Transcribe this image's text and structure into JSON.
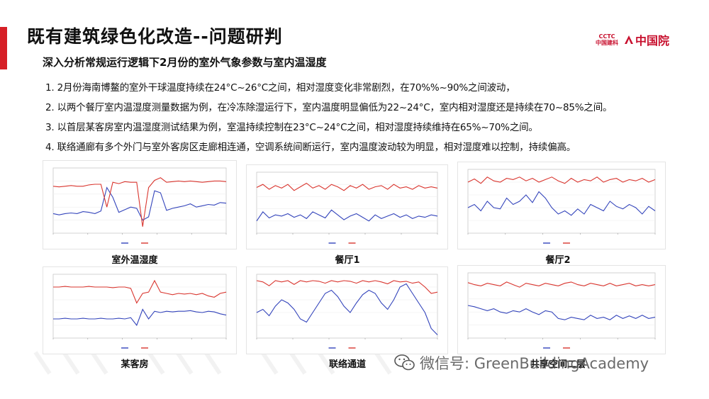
{
  "title": "既有建筑绿色化改造--问题研判",
  "subtitle": "深入分析常规运行逻辑下2月份的室外气象参数与室内温湿度",
  "logo": {
    "cctc_top": "CCTC",
    "cctc_bottom": "中国建科",
    "name": "中国院"
  },
  "points": [
    "1. 2月份海南博鳌的室外干球温度持续在24°C~26°C之间，相对湿度变化非常剧烈，在70%%~90%之间波动，",
    "2. 以两个餐厅室内温湿度测量数据为例，在冷冻除湿运行下，室内温度明显偏低为22~24°C，室内相对湿度还是持续在70~85%之间。",
    "3. 以首层某客房室内温湿度测试结果为例，室温持续控制在23°C~24°C之间，相对湿度持续维持在65%~70%之间。",
    "4. 联络通廊有多个外门与室外客房区走廊相连通，空调系统间断运行，室内温度波动较为明显，相对湿度难以控制，持续偏高。"
  ],
  "captions": [
    "室外温湿度",
    "餐厅1",
    "餐厅2",
    "某客房",
    "联络通道",
    "共享空间二层"
  ],
  "watermark": "微信号: GreenBuildingAcademy",
  "colors": {
    "accent": "#d61f26",
    "humidity_line": "#d9352e",
    "temperature_line": "#3344bb"
  },
  "chart_data": [
    {
      "type": "line",
      "name": "室外温湿度",
      "series": [
        {
          "values": [
            0.3,
            0.28,
            0.3,
            0.31,
            0.3,
            0.33,
            0.32,
            0.3,
            0.34,
            0.7,
            0.55,
            0.32,
            0.36,
            0.4,
            0.38,
            0.2,
            0.25,
            0.65,
            0.62,
            0.35,
            0.38,
            0.4,
            0.42,
            0.45,
            0.4,
            0.42,
            0.44,
            0.43,
            0.47,
            0.46
          ]
        },
        {
          "values": [
            0.72,
            0.71,
            0.72,
            0.73,
            0.72,
            0.72,
            0.74,
            0.75,
            0.75,
            0.4,
            0.78,
            0.76,
            0.79,
            0.78,
            0.78,
            0.1,
            0.7,
            0.81,
            0.85,
            0.78,
            0.79,
            0.8,
            0.79,
            0.8,
            0.79,
            0.78,
            0.79,
            0.8,
            0.8,
            0.79
          ]
        }
      ]
    },
    {
      "type": "line",
      "name": "餐厅1",
      "series": [
        {
          "values": [
            0.2,
            0.35,
            0.25,
            0.3,
            0.28,
            0.32,
            0.26,
            0.3,
            0.24,
            0.35,
            0.3,
            0.25,
            0.38,
            0.3,
            0.22,
            0.28,
            0.32,
            0.26,
            0.2,
            0.3,
            0.24,
            0.28,
            0.32,
            0.26,
            0.3,
            0.24,
            0.28,
            0.26,
            0.3,
            0.28
          ]
        },
        {
          "values": [
            0.75,
            0.8,
            0.72,
            0.78,
            0.74,
            0.8,
            0.7,
            0.76,
            0.82,
            0.74,
            0.78,
            0.72,
            0.8,
            0.76,
            0.7,
            0.78,
            0.74,
            0.8,
            0.72,
            0.76,
            0.78,
            0.72,
            0.8,
            0.74,
            0.76,
            0.72,
            0.78,
            0.74,
            0.76,
            0.74
          ]
        }
      ]
    },
    {
      "type": "line",
      "name": "餐厅2",
      "series": [
        {
          "values": [
            0.4,
            0.45,
            0.35,
            0.5,
            0.4,
            0.38,
            0.55,
            0.45,
            0.5,
            0.6,
            0.48,
            0.65,
            0.55,
            0.4,
            0.3,
            0.35,
            0.28,
            0.38,
            0.3,
            0.45,
            0.4,
            0.35,
            0.5,
            0.42,
            0.38,
            0.45,
            0.4,
            0.3,
            0.42,
            0.35
          ]
        },
        {
          "values": [
            0.8,
            0.85,
            0.78,
            0.88,
            0.82,
            0.8,
            0.86,
            0.84,
            0.88,
            0.82,
            0.86,
            0.8,
            0.84,
            0.88,
            0.82,
            0.78,
            0.86,
            0.8,
            0.84,
            0.82,
            0.88,
            0.8,
            0.84,
            0.86,
            0.8,
            0.84,
            0.82,
            0.86,
            0.8,
            0.84
          ]
        }
      ]
    },
    {
      "type": "line",
      "name": "某客房",
      "series": [
        {
          "values": [
            0.3,
            0.3,
            0.31,
            0.3,
            0.3,
            0.31,
            0.3,
            0.3,
            0.31,
            0.3,
            0.3,
            0.31,
            0.3,
            0.32,
            0.2,
            0.45,
            0.3,
            0.42,
            0.4,
            0.42,
            0.41,
            0.42,
            0.42,
            0.43,
            0.41,
            0.4,
            0.42,
            0.41,
            0.38,
            0.36
          ]
        },
        {
          "values": [
            0.8,
            0.8,
            0.81,
            0.8,
            0.8,
            0.8,
            0.81,
            0.8,
            0.8,
            0.8,
            0.79,
            0.8,
            0.8,
            0.78,
            0.55,
            0.7,
            0.72,
            0.9,
            0.72,
            0.7,
            0.68,
            0.7,
            0.69,
            0.7,
            0.68,
            0.7,
            0.66,
            0.64,
            0.7,
            0.72
          ]
        }
      ]
    },
    {
      "type": "line",
      "name": "联络通道",
      "series": [
        {
          "values": [
            0.4,
            0.45,
            0.35,
            0.5,
            0.6,
            0.55,
            0.45,
            0.3,
            0.25,
            0.4,
            0.55,
            0.7,
            0.75,
            0.65,
            0.5,
            0.4,
            0.55,
            0.68,
            0.75,
            0.7,
            0.55,
            0.45,
            0.6,
            0.8,
            0.85,
            0.7,
            0.55,
            0.4,
            0.15,
            0.05
          ]
        },
        {
          "values": [
            0.9,
            0.88,
            0.82,
            0.9,
            0.88,
            0.9,
            0.84,
            0.9,
            0.88,
            0.9,
            0.89,
            0.86,
            0.9,
            0.88,
            0.9,
            0.89,
            0.86,
            0.9,
            0.88,
            0.9,
            0.88,
            0.85,
            0.9,
            0.88,
            0.89,
            0.86,
            0.88,
            0.8,
            0.7,
            0.72
          ]
        }
      ]
    },
    {
      "type": "line",
      "name": "共享空间二层",
      "series": [
        {
          "values": [
            0.5,
            0.48,
            0.45,
            0.42,
            0.45,
            0.4,
            0.38,
            0.42,
            0.4,
            0.45,
            0.4,
            0.36,
            0.42,
            0.4,
            0.3,
            0.28,
            0.32,
            0.3,
            0.28,
            0.35,
            0.3,
            0.32,
            0.28,
            0.35,
            0.3,
            0.34,
            0.3,
            0.35,
            0.3,
            0.32
          ]
        },
        {
          "values": [
            0.85,
            0.82,
            0.8,
            0.84,
            0.82,
            0.8,
            0.86,
            0.82,
            0.78,
            0.84,
            0.82,
            0.8,
            0.84,
            0.82,
            0.8,
            0.84,
            0.86,
            0.82,
            0.8,
            0.84,
            0.82,
            0.8,
            0.84,
            0.8,
            0.82,
            0.84,
            0.8,
            0.82,
            0.8,
            0.82
          ]
        }
      ]
    }
  ]
}
